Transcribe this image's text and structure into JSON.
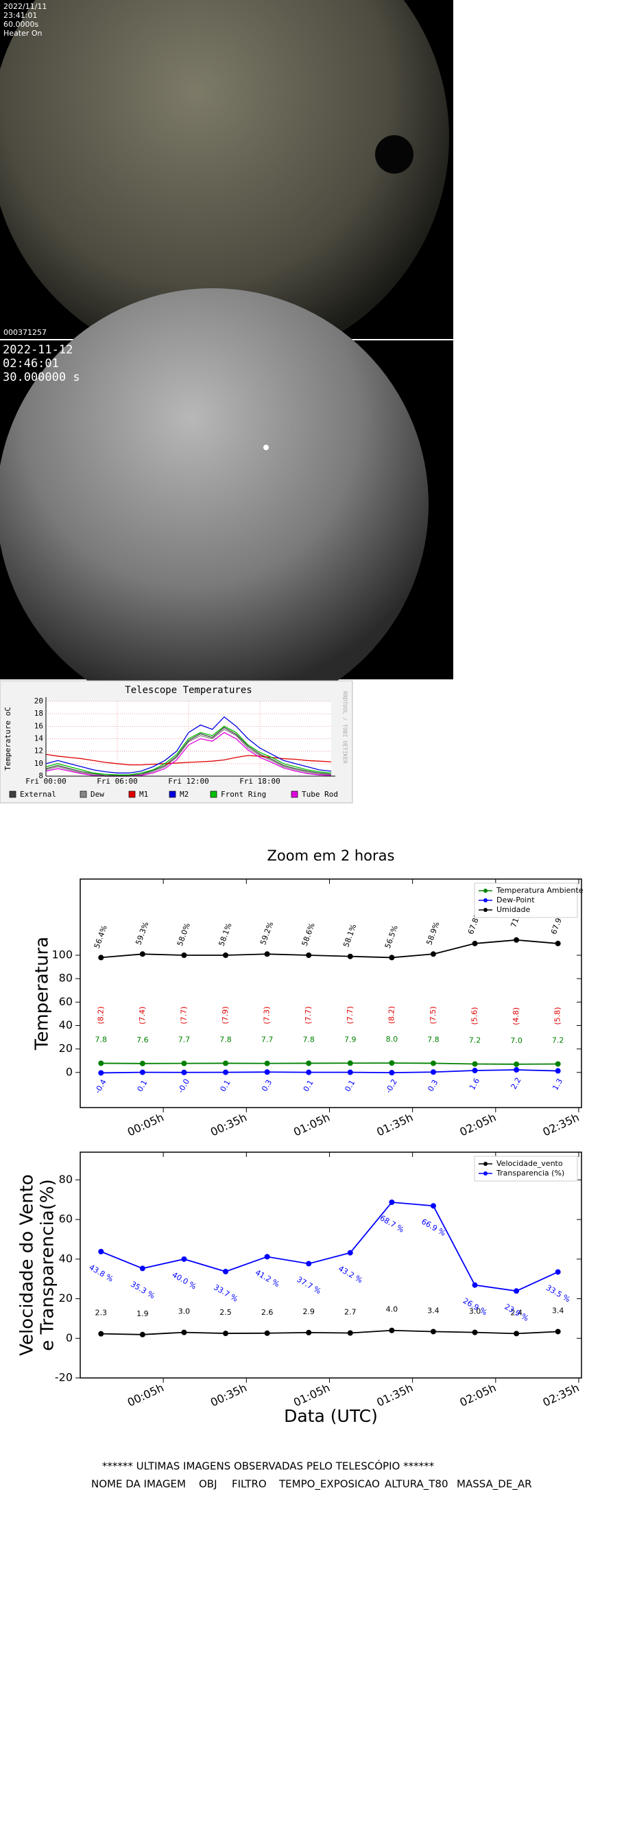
{
  "sky_image_1": {
    "date": "2022/11/11",
    "time": "23:41:01",
    "exposure": "60.0000s",
    "status": "Heater On",
    "id": "000371257"
  },
  "sky_image_2": {
    "date": "2022-11-12",
    "time": "02:46:01",
    "exposure": "30.000000 s"
  },
  "chart_data": [
    {
      "type": "line",
      "title": "Telescope Temperatures",
      "ylabel": "Temperature oC",
      "side_text": "RRDTOOL / TOBI OETIKER",
      "x": [
        0,
        1,
        2,
        3,
        4,
        5,
        6,
        7,
        8,
        9,
        10,
        11,
        12,
        13,
        14,
        15,
        16,
        17,
        18,
        19,
        20,
        21,
        22,
        23,
        24
      ],
      "xlim": [
        0,
        24
      ],
      "xticks": [
        {
          "value": 0,
          "label": "Fri 00:00"
        },
        {
          "value": 6,
          "label": "Fri 06:00"
        },
        {
          "value": 12,
          "label": "Fri 12:00"
        },
        {
          "value": 18,
          "label": "Fri 18:00"
        }
      ],
      "ylim": [
        8,
        20
      ],
      "yticks": [
        8,
        10,
        12,
        14,
        16,
        18,
        20
      ],
      "grid": true,
      "series": [
        {
          "name": "External",
          "color": "#404040",
          "values": [
            9.2,
            9.7,
            9.2,
            8.7,
            8.4,
            8.1,
            8.1,
            8.1,
            8.3,
            8.9,
            9.7,
            11.2,
            13.7,
            14.8,
            14.2,
            15.8,
            14.7,
            12.8,
            11.5,
            10.7,
            9.7,
            9.2,
            8.8,
            8.5,
            8.3
          ]
        },
        {
          "name": "Dew",
          "color": "#888888",
          "values": [
            9.0,
            9.5,
            9.0,
            8.5,
            8.2,
            8.0,
            8.0,
            8.0,
            8.2,
            8.7,
            9.5,
            11.0,
            13.5,
            14.5,
            14.0,
            15.5,
            14.5,
            12.5,
            11.3,
            10.5,
            9.5,
            9.0,
            8.6,
            8.3,
            8.2
          ]
        },
        {
          "name": "M1",
          "color": "#e00000",
          "values": [
            11.5,
            11.2,
            11.0,
            10.8,
            10.5,
            10.2,
            10.0,
            9.8,
            9.8,
            9.9,
            10.0,
            10.1,
            10.2,
            10.3,
            10.4,
            10.6,
            11.0,
            11.3,
            11.2,
            11.0,
            10.8,
            10.7,
            10.5,
            10.4,
            10.3
          ]
        },
        {
          "name": "M2",
          "color": "#0000e0",
          "values": [
            10.0,
            10.5,
            10.0,
            9.5,
            9.0,
            8.7,
            8.5,
            8.5,
            8.8,
            9.5,
            10.5,
            12.0,
            15.0,
            16.2,
            15.5,
            17.5,
            16.0,
            14.0,
            12.5,
            11.5,
            10.5,
            10.0,
            9.5,
            9.0,
            8.8
          ]
        },
        {
          "name": "Front Ring",
          "color": "#00c000",
          "values": [
            9.5,
            10.0,
            9.5,
            9.0,
            8.5,
            8.3,
            8.2,
            8.2,
            8.5,
            9.0,
            10.0,
            11.5,
            14.0,
            15.0,
            14.5,
            16.0,
            15.0,
            13.0,
            11.8,
            11.0,
            10.0,
            9.5,
            9.0,
            8.7,
            8.5
          ]
        },
        {
          "name": "Tube Rod",
          "color": "#e000e0",
          "values": [
            8.8,
            9.2,
            8.8,
            8.4,
            8.1,
            8.0,
            8.0,
            8.0,
            8.1,
            8.5,
            9.2,
            10.6,
            13.0,
            14.0,
            13.6,
            15.0,
            14.0,
            12.2,
            11.0,
            10.2,
            9.3,
            8.8,
            8.4,
            8.2,
            8.1
          ]
        }
      ]
    },
    {
      "type": "line",
      "title": "Zoom em 2 horas",
      "ylabel": [
        "Temperatura"
      ],
      "x": [
        -17.5,
        -2.5,
        12.5,
        27.5,
        42.5,
        57.5,
        72.5,
        87.5,
        102.5,
        117.5,
        132.5,
        147.5
      ],
      "xlim": [
        -25,
        156
      ],
      "xticks": [
        {
          "value": 5,
          "label": "00:05h"
        },
        {
          "value": 35,
          "label": "00:35h"
        },
        {
          "value": 65,
          "label": "01:05h"
        },
        {
          "value": 95,
          "label": "01:35h"
        },
        {
          "value": 125,
          "label": "02:05h"
        },
        {
          "value": 155,
          "label": "02:35h"
        }
      ],
      "ylim": [
        -30,
        165
      ],
      "yticks": [
        0,
        20,
        40,
        60,
        80,
        100
      ],
      "legend": "upper right",
      "series": [
        {
          "name": "Temperatura Ambiente",
          "color": "#008000",
          "values": [
            7.8,
            7.6,
            7.7,
            7.8,
            7.7,
            7.8,
            7.9,
            8.0,
            7.8,
            7.2,
            7.0,
            7.2
          ],
          "value_labels": [
            "7.8",
            "7.6",
            "7.7",
            "7.8",
            "7.7",
            "7.8",
            "7.9",
            "8.0",
            "7.8",
            "7.2",
            "7.0",
            "7.2"
          ]
        },
        {
          "name": "Dew-Point",
          "color": "#0000ff",
          "values": [
            -0.4,
            0.1,
            0,
            0.1,
            0.3,
            0.1,
            0.1,
            -0.2,
            0.3,
            1.6,
            2.2,
            1.3
          ],
          "value_labels": [
            "-0.4",
            "0.1",
            "-0.0",
            "0.1",
            "0.3",
            "0.1",
            "0.1",
            "-0.2",
            "0.3",
            "1.6",
            "2.2",
            "1.3"
          ]
        },
        {
          "name": "Umidade",
          "color": "#000000",
          "values": [
            98,
            101,
            100,
            100,
            101,
            100,
            99,
            98,
            101,
            110,
            113,
            110
          ],
          "annotations": [
            "56.4%",
            "59.3%",
            "58.0%",
            "58.1%",
            "59.2%",
            "58.6%",
            "58.1%",
            "56.5%",
            "58.9%",
            "67.8%",
            "71.5",
            "67.9%"
          ]
        }
      ],
      "annotations": {
        "color": "#e00000",
        "labels": [
          "(8.2)",
          "(7.4)",
          "(7.7)",
          "(7.9)",
          "(7.3)",
          "(7.7)",
          "(7.7)",
          "(8.2)",
          "(7.5)",
          "(5.6)",
          "(4.8)",
          "(5.8)"
        ]
      }
    },
    {
      "type": "line",
      "ylabel": [
        "Velocidade do Vento",
        "e Transparencia(%)"
      ],
      "xlabel": "Data (UTC)",
      "x": [
        -17.5,
        -2.5,
        12.5,
        27.5,
        42.5,
        57.5,
        72.5,
        87.5,
        102.5,
        117.5,
        132.5,
        147.5
      ],
      "xlim": [
        -25,
        156
      ],
      "xticks": [
        {
          "value": 5,
          "label": "00:05h"
        },
        {
          "value": 35,
          "label": "00:35h"
        },
        {
          "value": 65,
          "label": "01:05h"
        },
        {
          "value": 95,
          "label": "01:35h"
        },
        {
          "value": 125,
          "label": "02:05h"
        },
        {
          "value": 155,
          "label": "02:35h"
        }
      ],
      "ylim": [
        -20,
        94
      ],
      "yticks": [
        -20,
        0,
        20,
        40,
        60,
        80
      ],
      "legend": "upper right",
      "series": [
        {
          "name": "Velocidade_vento",
          "color": "#000000",
          "values": [
            2.3,
            1.9,
            3.0,
            2.5,
            2.6,
            2.9,
            2.7,
            4.0,
            3.4,
            3.0,
            2.4,
            3.4
          ],
          "value_labels": [
            "2.3",
            "1.9",
            "3.0",
            "2.5",
            "2.6",
            "2.9",
            "2.7",
            "4.0",
            "3.4",
            "3.0",
            "2.4",
            "3.4"
          ]
        },
        {
          "name": "Transparencia (%)",
          "color": "#0000ff",
          "values": [
            43.8,
            35.3,
            40.0,
            33.7,
            41.2,
            37.7,
            43.2,
            68.7,
            66.9,
            26.9,
            23.9,
            33.5
          ],
          "value_labels": [
            "43.8 %",
            "35.3 %",
            "40.0 %",
            "33.7 %",
            "41.2 %",
            "37.7 %",
            "43.2 %",
            "68.7 %",
            "66.9 %",
            "26.9 %",
            "23.9 %",
            "33.5 %"
          ]
        }
      ]
    }
  ],
  "footer": {
    "heading": "****** ULTIMAS IMAGENS OBSERVADAS PELO TELESCÓPIO ******",
    "columns": [
      "NOME DA IMAGEM",
      "OBJ",
      "FILTRO",
      "TEMPO_EXPOSICAO",
      "ALTURA_T80",
      "MASSA_DE_AR"
    ]
  }
}
